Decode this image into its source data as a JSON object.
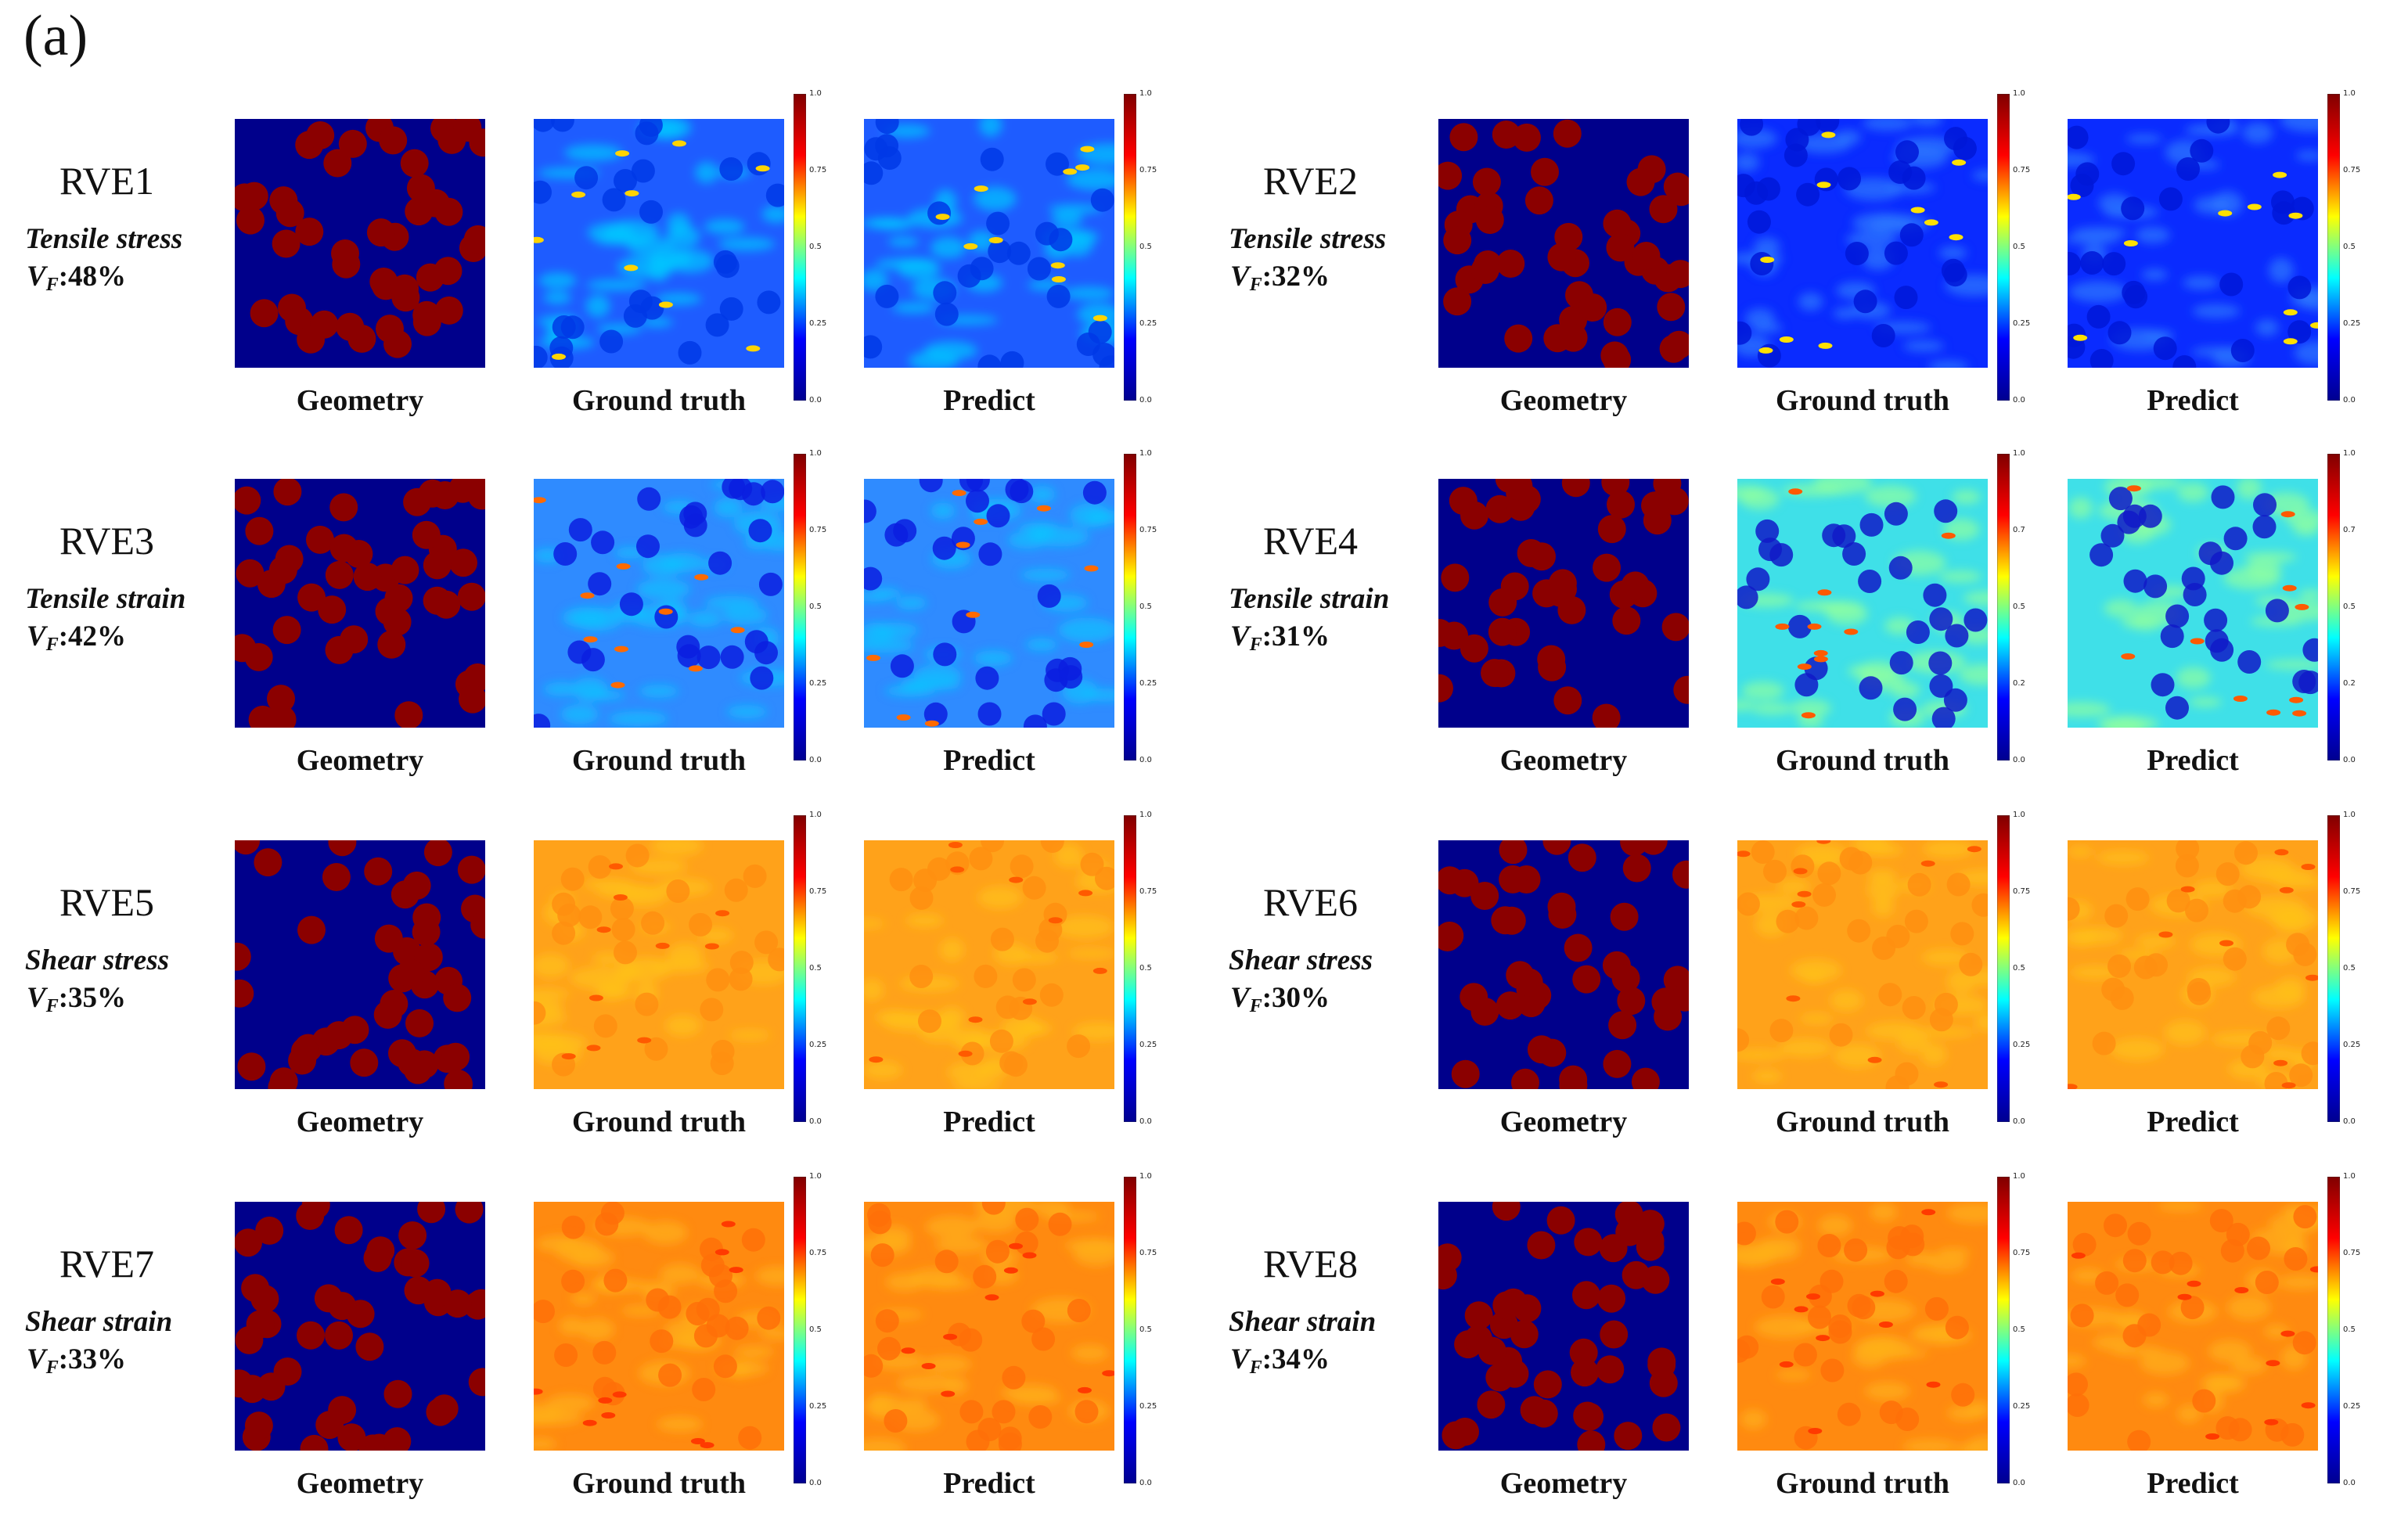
{
  "figure_label": "(a)",
  "panel_labels": {
    "geometry": "Geometry",
    "ground_truth": "Ground truth",
    "predict": "Predict"
  },
  "colormap": [
    "#00008f",
    "#0000ff",
    "#00ffff",
    "#ffff00",
    "#ff0000",
    "#800000"
  ],
  "colors": {
    "fiber": "#8b0000",
    "matrix": "#00008b"
  },
  "rves": [
    {
      "name": "RVE1",
      "type": "Tensile stress",
      "vf_label": "V",
      "vf_sub": "F",
      "vf_value": ":48%",
      "field": "tensile-stress",
      "ticks": [
        "1.0",
        "0.75",
        "0.5",
        "0.25",
        "0.0"
      ]
    },
    {
      "name": "RVE2",
      "type": "Tensile stress",
      "vf_label": "V",
      "vf_sub": "F",
      "vf_value": ":32%",
      "field": "tensile-stress-low",
      "ticks": [
        "1.0",
        "0.75",
        "0.5",
        "0.25",
        "0.0"
      ]
    },
    {
      "name": "RVE3",
      "type": "Tensile strain",
      "vf_label": "V",
      "vf_sub": "F",
      "vf_value": ":42%",
      "field": "tensile-strain",
      "ticks": [
        "1.0",
        "0.75",
        "0.5",
        "0.25",
        "0.0"
      ]
    },
    {
      "name": "RVE4",
      "type": "Tensile strain",
      "vf_label": "V",
      "vf_sub": "F",
      "vf_value": ":31%",
      "field": "tensile-strain-cyan",
      "ticks": [
        "1.0",
        "0.7",
        "0.5",
        "0.2",
        "0.0"
      ]
    },
    {
      "name": "RVE5",
      "type": "Shear stress",
      "vf_label": "V",
      "vf_sub": "F",
      "vf_value": ":35%",
      "field": "shear-stress",
      "ticks": [
        "1.0",
        "0.75",
        "0.5",
        "0.25",
        "0.0"
      ]
    },
    {
      "name": "RVE6",
      "type": "Shear stress",
      "vf_label": "V",
      "vf_sub": "F",
      "vf_value": ":30%",
      "field": "shear-stress",
      "ticks": [
        "1.0",
        "0.75",
        "0.5",
        "0.25",
        "0.0"
      ]
    },
    {
      "name": "RVE7",
      "type": "Shear strain",
      "vf_label": "V",
      "vf_sub": "F",
      "vf_value": ":33%",
      "field": "shear-strain",
      "ticks": [
        "1.0",
        "0.75",
        "0.5",
        "0.25",
        "0.0"
      ]
    },
    {
      "name": "RVE8",
      "type": "Shear strain",
      "vf_label": "V",
      "vf_sub": "F",
      "vf_value": ":34%",
      "field": "shear-strain",
      "ticks": [
        "1.0",
        "0.75",
        "0.5",
        "0.25",
        "0.0"
      ]
    }
  ]
}
